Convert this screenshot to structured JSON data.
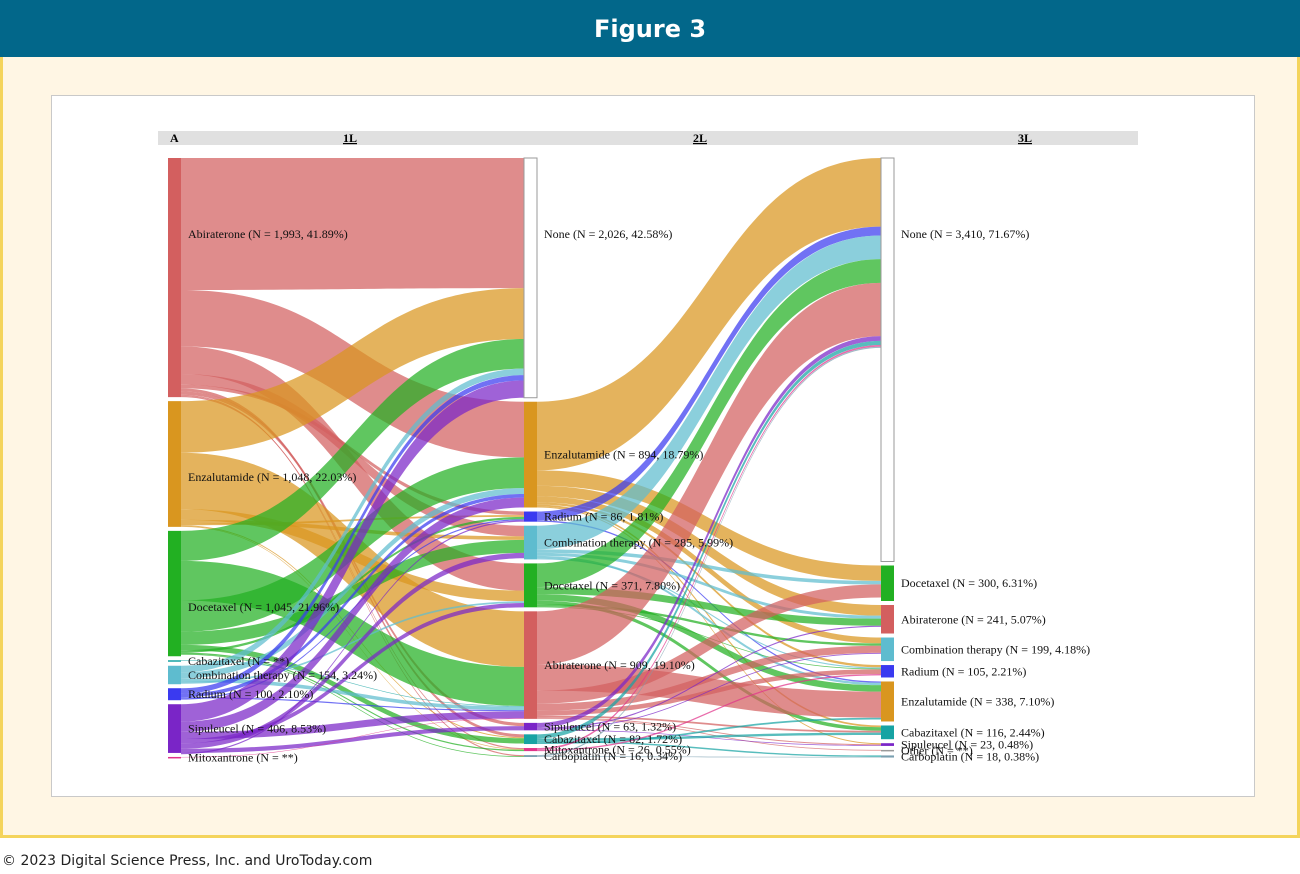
{
  "header": {
    "title": "Figure 3"
  },
  "footer": {
    "copyright": "© 2023 Digital Science Press, Inc. and UroToday.com"
  },
  "diagram": {
    "panel_label": "A",
    "columns": [
      "1L",
      "2L",
      "3L"
    ],
    "nodes": {
      "1L": [
        {
          "id": "abi1",
          "label": "Abiraterone (N = 1,993, 41.89%)",
          "n": 1993,
          "color": "#d35f5f"
        },
        {
          "id": "enz1",
          "label": "Enzalutamide (N = 1,048, 22.03%)",
          "n": 1048,
          "color": "#d9961f"
        },
        {
          "id": "doc1",
          "label": "Docetaxel (N = 1,045, 21.96%)",
          "n": 1045,
          "color": "#22b022"
        },
        {
          "id": "cab1",
          "label": "Cabazitaxel (N = **)",
          "n": 8,
          "color": "#17a3a3"
        },
        {
          "id": "com1",
          "label": "Combination therapy (N = 154, 3.24%)",
          "n": 154,
          "color": "#5ebccf"
        },
        {
          "id": "rad1",
          "label": "Radium (N = 100, 2.10%)",
          "n": 100,
          "color": "#3a3af0"
        },
        {
          "id": "sip1",
          "label": "Sipuleucel (N = 406, 8.53%)",
          "n": 406,
          "color": "#7a25c7"
        },
        {
          "id": "mit1",
          "label": "Mitoxantrone (N = **)",
          "n": 5,
          "color": "#e0338a"
        }
      ],
      "2L": [
        {
          "id": "none2",
          "label": "None (N = 2,026, 42.58%)",
          "n": 2026,
          "color": "#ffffff"
        },
        {
          "id": "enz2",
          "label": "Enzalutamide (N = 894, 18.79%)",
          "n": 894,
          "color": "#d9961f"
        },
        {
          "id": "rad2",
          "label": "Radium (N = 86, 1.81%)",
          "n": 86,
          "color": "#3a3af0"
        },
        {
          "id": "com2",
          "label": "Combination therapy (N = 285, 5.99%)",
          "n": 285,
          "color": "#5ebccf"
        },
        {
          "id": "doc2",
          "label": "Docetaxel (N = 371, 7.80%)",
          "n": 371,
          "color": "#22b022"
        },
        {
          "id": "abi2",
          "label": "Abiraterone (N = 909, 19.10%)",
          "n": 909,
          "color": "#d35f5f"
        },
        {
          "id": "sip2",
          "label": "Sipuleucel (N = 63, 1.32%)",
          "n": 63,
          "color": "#7a25c7"
        },
        {
          "id": "cab2",
          "label": "Cabazitaxel (N = 82, 1.72%)",
          "n": 82,
          "color": "#17a3a3"
        },
        {
          "id": "mit2",
          "label": "Mitoxantrone (N = 26, 0.55%)",
          "n": 26,
          "color": "#e0338a"
        },
        {
          "id": "car2",
          "label": "Carboplatin (N = 16, 0.34%)",
          "n": 16,
          "color": "#7aa0b0"
        }
      ],
      "3L": [
        {
          "id": "none3",
          "label": "None (N = 3,410, 71.67%)",
          "n": 3410,
          "color": "#ffffff"
        },
        {
          "id": "doc3",
          "label": "Docetaxel (N = 300, 6.31%)",
          "n": 300,
          "color": "#22b022"
        },
        {
          "id": "abi3",
          "label": "Abiraterone (N = 241, 5.07%)",
          "n": 241,
          "color": "#d35f5f"
        },
        {
          "id": "com3",
          "label": "Combination therapy (N = 199, 4.18%)",
          "n": 199,
          "color": "#5ebccf"
        },
        {
          "id": "rad3",
          "label": "Radium (N = 105, 2.21%)",
          "n": 105,
          "color": "#3a3af0"
        },
        {
          "id": "enz3",
          "label": "Enzalutamide (N = 338, 7.10%)",
          "n": 338,
          "color": "#d9961f"
        },
        {
          "id": "cab3",
          "label": "Cabazitaxel (N = 116, 2.44%)",
          "n": 116,
          "color": "#17a3a3"
        },
        {
          "id": "sip3",
          "label": "Sipuleucel (N = 23, 0.48%)",
          "n": 23,
          "color": "#7a25c7"
        },
        {
          "id": "oth3",
          "label": "Other (N = **)",
          "n": 8,
          "color": "#999999"
        },
        {
          "id": "car3",
          "label": "Carboplatin (N = 18, 0.38%)",
          "n": 18,
          "color": "#7aa0b0"
        }
      ]
    },
    "links": [
      [
        "abi1",
        "none2",
        1100
      ],
      [
        "abi1",
        "enz2",
        470
      ],
      [
        "abi1",
        "doc2",
        230
      ],
      [
        "abi1",
        "com2",
        90
      ],
      [
        "abi1",
        "rad2",
        30
      ],
      [
        "abi1",
        "cab2",
        25
      ],
      [
        "abi1",
        "sip2",
        28
      ],
      [
        "abi1",
        "car2",
        10
      ],
      [
        "abi1",
        "mit2",
        10
      ],
      [
        "enz1",
        "none2",
        430
      ],
      [
        "enz1",
        "abi2",
        470
      ],
      [
        "enz1",
        "doc2",
        90
      ],
      [
        "enz1",
        "com2",
        30
      ],
      [
        "enz1",
        "rad2",
        15
      ],
      [
        "enz1",
        "cab2",
        8
      ],
      [
        "enz1",
        "mit2",
        5
      ],
      [
        "doc1",
        "none2",
        250
      ],
      [
        "doc1",
        "abi2",
        330
      ],
      [
        "doc1",
        "enz2",
        260
      ],
      [
        "doc1",
        "com2",
        110
      ],
      [
        "doc1",
        "cab2",
        45
      ],
      [
        "doc1",
        "rad2",
        20
      ],
      [
        "doc1",
        "mit2",
        11
      ],
      [
        "doc1",
        "car2",
        6
      ],
      [
        "cab1",
        "abi2",
        5
      ],
      [
        "com1",
        "none2",
        55
      ],
      [
        "com1",
        "enz2",
        50
      ],
      [
        "com1",
        "abi2",
        30
      ],
      [
        "com1",
        "doc2",
        15
      ],
      [
        "rad1",
        "none2",
        45
      ],
      [
        "rad1",
        "enz2",
        30
      ],
      [
        "rad1",
        "abi2",
        10
      ],
      [
        "rad1",
        "rad2",
        10
      ],
      [
        "sip1",
        "none2",
        146
      ],
      [
        "sip1",
        "enz2",
        84
      ],
      [
        "sip1",
        "abi2",
        60
      ],
      [
        "sip1",
        "doc2",
        36
      ],
      [
        "sip1",
        "com2",
        45
      ],
      [
        "sip1",
        "sip2",
        35
      ],
      [
        "sip1",
        "rad2",
        11
      ],
      [
        "mit1",
        "abi2",
        4
      ],
      [
        "enz2",
        "none3",
        580
      ],
      [
        "enz2",
        "doc3",
        130
      ],
      [
        "enz2",
        "abi3",
        90
      ],
      [
        "enz2",
        "com3",
        50
      ],
      [
        "enz2",
        "rad3",
        20
      ],
      [
        "enz2",
        "cab3",
        15
      ],
      [
        "enz2",
        "sip3",
        9
      ],
      [
        "rad2",
        "none3",
        75
      ],
      [
        "rad2",
        "enz3",
        11
      ],
      [
        "com2",
        "none3",
        200
      ],
      [
        "com2",
        "doc3",
        30
      ],
      [
        "com2",
        "abi3",
        25
      ],
      [
        "com2",
        "enz3",
        20
      ],
      [
        "com2",
        "rad3",
        10
      ],
      [
        "doc2",
        "none3",
        200
      ],
      [
        "doc2",
        "abi3",
        60
      ],
      [
        "doc2",
        "enz3",
        55
      ],
      [
        "doc2",
        "cab3",
        30
      ],
      [
        "doc2",
        "com3",
        20
      ],
      [
        "doc2",
        "rad3",
        6
      ],
      [
        "abi2",
        "none3",
        450
      ],
      [
        "abi2",
        "enz3",
        220
      ],
      [
        "abi2",
        "doc3",
        110
      ],
      [
        "abi2",
        "com3",
        60
      ],
      [
        "abi2",
        "rad3",
        40
      ],
      [
        "abi2",
        "cab3",
        15
      ],
      [
        "abi2",
        "sip3",
        8
      ],
      [
        "abi2",
        "oth3",
        6
      ],
      [
        "sip2",
        "none3",
        40
      ],
      [
        "sip2",
        "abi3",
        10
      ],
      [
        "sip2",
        "com3",
        7
      ],
      [
        "sip2",
        "sip3",
        6
      ],
      [
        "cab2",
        "none3",
        35
      ],
      [
        "cab2",
        "cab3",
        20
      ],
      [
        "cab2",
        "car3",
        12
      ],
      [
        "cab2",
        "enz3",
        15
      ],
      [
        "mit2",
        "none3",
        15
      ],
      [
        "mit2",
        "rad3",
        11
      ],
      [
        "car2",
        "none3",
        10
      ],
      [
        "car2",
        "car3",
        6
      ]
    ]
  }
}
